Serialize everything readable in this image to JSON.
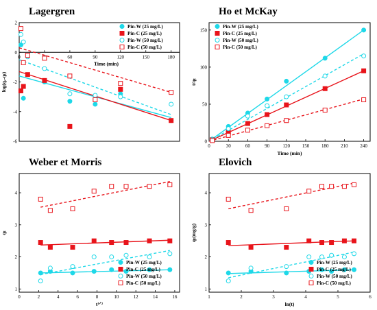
{
  "figure": {
    "series_styles": [
      {
        "color": "#1ed8e8",
        "marker": "circle",
        "filled": true,
        "line": "solid"
      },
      {
        "color": "#e8141b",
        "marker": "square",
        "filled": true,
        "line": "solid"
      },
      {
        "color": "#1ed8e8",
        "marker": "circle",
        "filled": false,
        "line": "dashed"
      },
      {
        "color": "#e8141b",
        "marker": "square",
        "filled": false,
        "line": "dashed"
      }
    ]
  },
  "chart_data": [
    {
      "type": "scatter",
      "title": "Lagergren",
      "xlabel": "Time (min)",
      "ylabel": "log(qₑ-qₜ)",
      "xlim": [
        0,
        190
      ],
      "ylim": [
        -6,
        2
      ],
      "x_ticks": [
        0,
        30,
        60,
        90,
        120,
        150,
        180
      ],
      "y_ticks": [
        -6,
        -4,
        -2,
        0,
        2
      ],
      "x_axis_at_top": true,
      "legend_position": "top-right",
      "series": [
        {
          "name": "Pin-W (25 mg/L)",
          "x": [
            2,
            5,
            30,
            60,
            90,
            120,
            180
          ],
          "y": [
            0.5,
            -3.1,
            -2.0,
            -3.3,
            -3.5,
            -2.8,
            -4.6
          ],
          "fit": [
            [
              0,
              -1.6
            ],
            [
              180,
              -4.4
            ]
          ]
        },
        {
          "name": "Pin-C  (25 mg/L)",
          "x": [
            2,
            5,
            10,
            30,
            60,
            120,
            180
          ],
          "y": [
            -2.6,
            -2.3,
            -1.5,
            -1.9,
            -5.0,
            -2.5,
            -4.6
          ],
          "fit": [
            [
              0,
              -1.3
            ],
            [
              180,
              -4.6
            ]
          ]
        },
        {
          "name": "Pin-W (50 mg/L)",
          "x": [
            2,
            5,
            10,
            30,
            60,
            90,
            120,
            180
          ],
          "y": [
            1.2,
            0.7,
            -0.3,
            -1.1,
            -2.8,
            -2.9,
            -3.0,
            -3.5
          ],
          "fit": [
            [
              0,
              -0.5
            ],
            [
              180,
              -4.2
            ]
          ]
        },
        {
          "name": "Pin-C  (50 mg/L)",
          "x": [
            2,
            5,
            10,
            30,
            60,
            90,
            120,
            180
          ],
          "y": [
            1.6,
            -0.7,
            -0.2,
            -0.4,
            -1.6,
            -3.2,
            -2.1,
            -2.7
          ],
          "fit": [
            [
              0,
              0.3
            ],
            [
              180,
              -2.7
            ]
          ]
        }
      ]
    },
    {
      "type": "scatter",
      "title": "Ho et McKay",
      "xlabel": "Time (min)",
      "ylabel": "t/qₜ",
      "xlim": [
        0,
        250
      ],
      "ylim": [
        0,
        160
      ],
      "x_ticks": [
        0,
        30,
        60,
        90,
        120,
        150,
        180,
        210,
        240
      ],
      "y_ticks": [
        0,
        50,
        100,
        150
      ],
      "legend_position": "top-left",
      "series": [
        {
          "name": "Pin-W (25 mg/L)",
          "x": [
            5,
            30,
            60,
            90,
            120,
            180,
            240
          ],
          "y": [
            3,
            20,
            38,
            57,
            81,
            112,
            150
          ],
          "fit": [
            [
              0,
              0
            ],
            [
              240,
              150
            ]
          ]
        },
        {
          "name": "Pin-C  (25 mg/L)",
          "x": [
            5,
            30,
            60,
            90,
            120,
            180,
            240
          ],
          "y": [
            2,
            12,
            24,
            36,
            49,
            71,
            95
          ],
          "fit": [
            [
              0,
              0
            ],
            [
              240,
              95
            ]
          ]
        },
        {
          "name": "Pin-W (50 mg/L)",
          "x": [
            5,
            30,
            60,
            90,
            120,
            180,
            240
          ],
          "y": [
            2,
            17,
            34,
            48,
            60,
            88,
            115
          ],
          "fit": [
            [
              0,
              0
            ],
            [
              240,
              118
            ]
          ]
        },
        {
          "name": "Pin-C  (50 mg/L)",
          "x": [
            5,
            30,
            60,
            90,
            120,
            180,
            240
          ],
          "y": [
            1,
            8,
            15,
            21,
            28,
            42,
            56
          ],
          "fit": [
            [
              0,
              0
            ],
            [
              240,
              57
            ]
          ]
        }
      ]
    },
    {
      "type": "scatter",
      "title": "Weber et Morris",
      "xlabel": "t¹ᐟ²",
      "ylabel": "qₜ",
      "xlim": [
        0,
        16.5
      ],
      "ylim": [
        0.9,
        4.6
      ],
      "x_ticks": [
        0,
        2,
        4,
        6,
        8,
        10,
        12,
        14,
        16
      ],
      "y_ticks": [
        1,
        2,
        3,
        4
      ],
      "legend_position": "bottom-right",
      "series": [
        {
          "name": "Pin-W (25 mg/L)",
          "x": [
            2.2,
            3.2,
            5.5,
            7.7,
            9.5,
            11,
            13.4,
            15.5
          ],
          "y": [
            1.5,
            1.55,
            1.5,
            1.55,
            1.6,
            1.55,
            1.6,
            1.6
          ],
          "fit": [
            [
              2.2,
              1.5
            ],
            [
              15.5,
              1.6
            ]
          ]
        },
        {
          "name": "Pin-C  (25 mg/L)",
          "x": [
            2.2,
            3.2,
            5.5,
            7.7,
            9.5,
            11,
            13.4,
            15.5
          ],
          "y": [
            2.45,
            2.3,
            2.3,
            2.5,
            2.45,
            2.45,
            2.5,
            2.5
          ],
          "fit": [
            [
              2.2,
              2.37
            ],
            [
              15.5,
              2.52
            ]
          ]
        },
        {
          "name": "Pin-W (50 mg/L)",
          "x": [
            2.2,
            3.2,
            5.5,
            7.7,
            9.5,
            11,
            13.4,
            15.5
          ],
          "y": [
            1.25,
            1.65,
            1.7,
            2.0,
            2.0,
            2.05,
            2.0,
            2.1
          ],
          "fit": [
            [
              2.2,
              1.45
            ],
            [
              15.5,
              2.2
            ]
          ]
        },
        {
          "name": "Pin-C  (50 mg/L)",
          "x": [
            2.2,
            3.2,
            5.5,
            7.7,
            9.5,
            11,
            13.4,
            15.5
          ],
          "y": [
            3.8,
            3.45,
            3.5,
            4.05,
            4.2,
            4.2,
            4.2,
            4.25
          ],
          "fit": [
            [
              2.2,
              3.55
            ],
            [
              15.5,
              4.35
            ]
          ]
        }
      ]
    },
    {
      "type": "scatter",
      "title": "Elovich",
      "xlabel": "ln(t)",
      "ylabel": "qₜ(mg/g)",
      "xlim": [
        1,
        6
      ],
      "ylim": [
        0.9,
        4.6
      ],
      "x_ticks": [
        1,
        2,
        3,
        4,
        5,
        6
      ],
      "y_ticks": [
        1,
        2,
        3,
        4
      ],
      "legend_position": "bottom-right",
      "series": [
        {
          "name": "Pin-W (25 mg/L)",
          "x": [
            1.6,
            2.3,
            3.4,
            4.1,
            4.5,
            4.8,
            5.2,
            5.5
          ],
          "y": [
            1.5,
            1.55,
            1.5,
            1.55,
            1.6,
            1.55,
            1.6,
            1.6
          ],
          "fit": [
            [
              1.6,
              1.48
            ],
            [
              5.5,
              1.6
            ]
          ]
        },
        {
          "name": "Pin-C  (25 mg/L)",
          "x": [
            1.6,
            2.3,
            3.4,
            4.1,
            4.5,
            4.8,
            5.2,
            5.5
          ],
          "y": [
            2.45,
            2.3,
            2.3,
            2.5,
            2.45,
            2.45,
            2.5,
            2.5
          ],
          "fit": [
            [
              1.6,
              2.35
            ],
            [
              5.5,
              2.5
            ]
          ]
        },
        {
          "name": "Pin-W (50 mg/L)",
          "x": [
            1.6,
            2.3,
            3.4,
            4.1,
            4.5,
            4.8,
            5.2,
            5.5
          ],
          "y": [
            1.25,
            1.65,
            1.7,
            2.0,
            2.0,
            2.05,
            2.0,
            2.1
          ],
          "fit": [
            [
              1.6,
              1.35
            ],
            [
              5.5,
              2.15
            ]
          ]
        },
        {
          "name": "Pin-C  (50 mg/L)",
          "x": [
            1.6,
            2.3,
            3.4,
            4.1,
            4.5,
            4.8,
            5.2,
            5.5
          ],
          "y": [
            3.8,
            3.45,
            3.5,
            4.05,
            4.2,
            4.2,
            4.2,
            4.25
          ],
          "fit": [
            [
              1.6,
              3.5
            ],
            [
              5.5,
              4.3
            ]
          ]
        }
      ]
    }
  ]
}
